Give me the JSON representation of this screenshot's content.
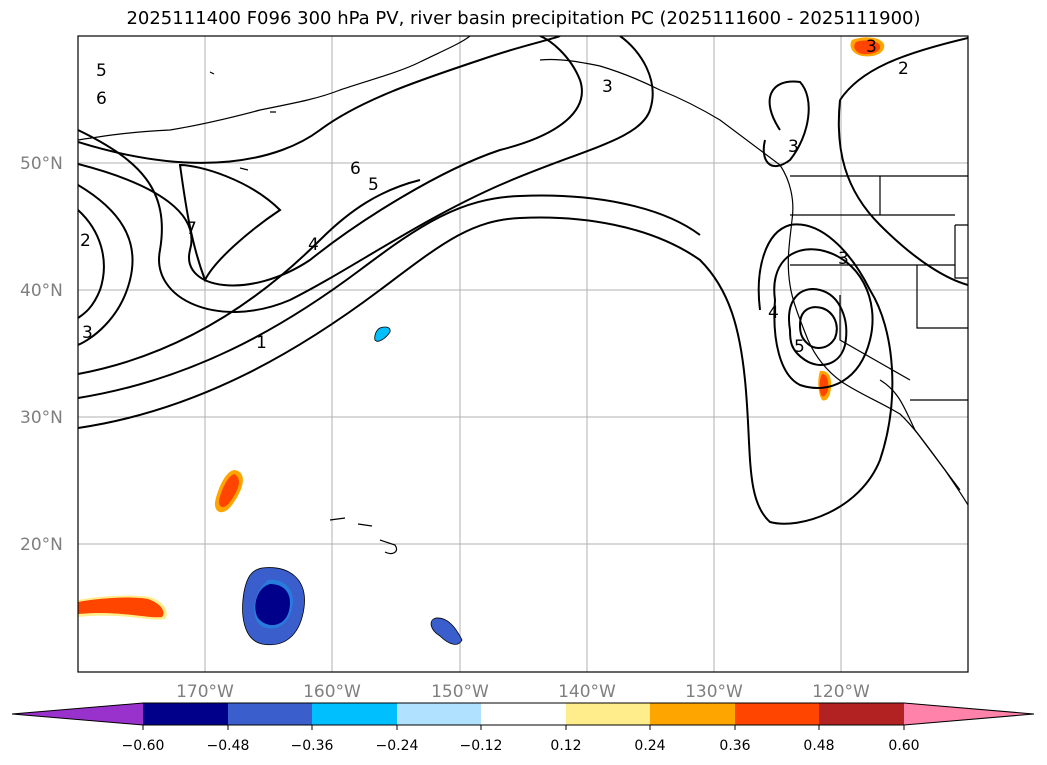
{
  "title": "2025111400 F096 300 hPa PV, river basin precipitation PC (2025111600 - 2025111900)",
  "map": {
    "lat_labels": [
      "50°N",
      "40°N",
      "30°N",
      "20°N"
    ],
    "lon_labels": [
      "170°W",
      "160°W",
      "150°W",
      "140°W",
      "130°W",
      "120°W"
    ],
    "contour_labels": [
      "5",
      "6",
      "7",
      "2",
      "3",
      "6",
      "5",
      "4",
      "1",
      "3",
      "3",
      "2",
      "3",
      "3",
      "4",
      "5"
    ]
  },
  "colorbar": {
    "ticks": [
      "−0.60",
      "−0.48",
      "−0.36",
      "−0.24",
      "−0.12",
      "0.12",
      "0.24",
      "0.36",
      "0.48",
      "0.60"
    ],
    "colors": [
      "#9932cc",
      "#00008b",
      "#3a5fcd",
      "#00bfff",
      "#b0e2ff",
      "#ffffff",
      "#ffec8b",
      "#ffa500",
      "#ff4500",
      "#b22222",
      "#ff82ab"
    ]
  }
}
